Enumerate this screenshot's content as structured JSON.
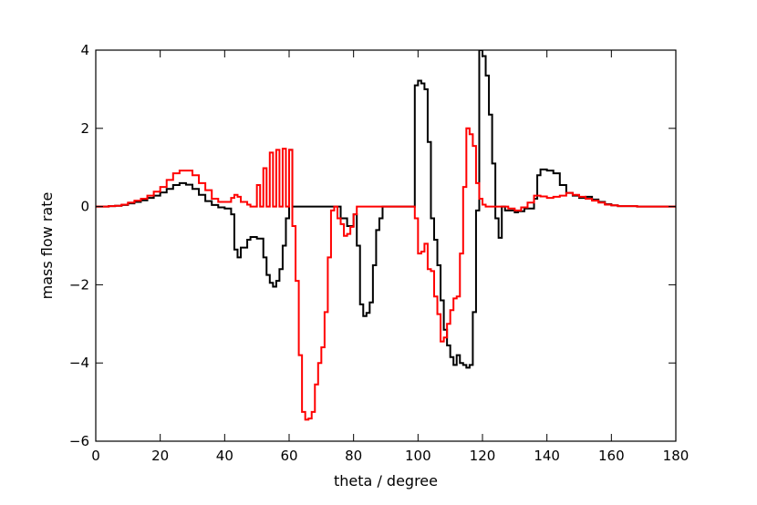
{
  "chart_data": {
    "type": "line",
    "step": true,
    "title": "",
    "xlabel": "theta / degree",
    "ylabel": "mass flow rate",
    "xlim": [
      0,
      180
    ],
    "ylim": [
      -6,
      4
    ],
    "xticks": [
      0,
      20,
      40,
      60,
      80,
      100,
      120,
      140,
      160,
      180
    ],
    "yticks": [
      4,
      2,
      0,
      -2,
      -4,
      -6
    ],
    "xtick_labels": [
      "0",
      "20",
      "40",
      "60",
      "80",
      "100",
      "120",
      "140",
      "160",
      "180"
    ],
    "ytick_labels": [
      "4",
      "2",
      "0",
      "−2",
      "−4",
      "−6"
    ],
    "grid": false,
    "legend": false,
    "series": [
      {
        "color": "#000000",
        "points": [
          [
            0,
            0
          ],
          [
            4,
            0.01
          ],
          [
            6,
            0.02
          ],
          [
            8,
            0.04
          ],
          [
            10,
            0.08
          ],
          [
            12,
            0.12
          ],
          [
            14,
            0.16
          ],
          [
            16,
            0.22
          ],
          [
            18,
            0.28
          ],
          [
            20,
            0.36
          ],
          [
            22,
            0.45
          ],
          [
            24,
            0.55
          ],
          [
            26,
            0.6
          ],
          [
            28,
            0.56
          ],
          [
            30,
            0.45
          ],
          [
            32,
            0.3
          ],
          [
            34,
            0.14
          ],
          [
            36,
            0.04
          ],
          [
            38,
            -0.02
          ],
          [
            40,
            -0.05
          ],
          [
            42,
            -0.2
          ],
          [
            43,
            -1.1
          ],
          [
            44,
            -1.3
          ],
          [
            45,
            -1.05
          ],
          [
            47,
            -0.85
          ],
          [
            48,
            -0.78
          ],
          [
            50,
            -0.82
          ],
          [
            52,
            -1.3
          ],
          [
            53,
            -1.75
          ],
          [
            54,
            -1.95
          ],
          [
            55,
            -2.05
          ],
          [
            56,
            -1.9
          ],
          [
            57,
            -1.6
          ],
          [
            58,
            -1.0
          ],
          [
            59,
            -0.3
          ],
          [
            60,
            1.45
          ],
          [
            61,
            0.0
          ],
          [
            62,
            0
          ],
          [
            63,
            0.0
          ],
          [
            74,
            0
          ],
          [
            76,
            -0.3
          ],
          [
            78,
            -0.5
          ],
          [
            80,
            -0.2
          ],
          [
            81,
            -1.0
          ],
          [
            82,
            -2.5
          ],
          [
            83,
            -2.8
          ],
          [
            84,
            -2.72
          ],
          [
            85,
            -2.45
          ],
          [
            86,
            -1.5
          ],
          [
            87,
            -0.6
          ],
          [
            88,
            -0.3
          ],
          [
            89,
            0
          ],
          [
            98,
            0
          ],
          [
            99,
            3.1
          ],
          [
            100,
            3.22
          ],
          [
            101,
            3.15
          ],
          [
            102,
            3.0
          ],
          [
            103,
            1.65
          ],
          [
            104,
            -0.3
          ],
          [
            105,
            -0.85
          ],
          [
            106,
            -1.5
          ],
          [
            107,
            -2.4
          ],
          [
            108,
            -3.15
          ],
          [
            109,
            -3.55
          ],
          [
            110,
            -3.85
          ],
          [
            111,
            -4.05
          ],
          [
            112,
            -3.8
          ],
          [
            113,
            -4.0
          ],
          [
            114,
            -4.05
          ],
          [
            115,
            -4.12
          ],
          [
            116,
            -4.05
          ],
          [
            117,
            -2.7
          ],
          [
            118,
            -0.1
          ],
          [
            119,
            4.0
          ],
          [
            120,
            3.85
          ],
          [
            121,
            3.35
          ],
          [
            122,
            2.35
          ],
          [
            123,
            1.1
          ],
          [
            124,
            -0.3
          ],
          [
            125,
            -0.8
          ],
          [
            126,
            0
          ],
          [
            127,
            -0.1
          ],
          [
            130,
            -0.15
          ],
          [
            131,
            -0.12
          ],
          [
            133,
            -0.05
          ],
          [
            136,
            0.2
          ],
          [
            137,
            0.8
          ],
          [
            138,
            0.95
          ],
          [
            140,
            0.92
          ],
          [
            142,
            0.85
          ],
          [
            144,
            0.55
          ],
          [
            146,
            0.35
          ],
          [
            148,
            0.28
          ],
          [
            150,
            0.22
          ],
          [
            152,
            0.25
          ],
          [
            154,
            0.18
          ],
          [
            156,
            0.12
          ],
          [
            158,
            0.06
          ],
          [
            160,
            0.03
          ],
          [
            162,
            0.01
          ],
          [
            168,
            0
          ],
          [
            180,
            0
          ]
        ]
      },
      {
        "color": "#ff0000",
        "points": [
          [
            0,
            0
          ],
          [
            4,
            0.01
          ],
          [
            6,
            0.02
          ],
          [
            8,
            0.05
          ],
          [
            10,
            0.1
          ],
          [
            12,
            0.15
          ],
          [
            14,
            0.2
          ],
          [
            16,
            0.28
          ],
          [
            18,
            0.38
          ],
          [
            20,
            0.5
          ],
          [
            22,
            0.68
          ],
          [
            24,
            0.85
          ],
          [
            26,
            0.92
          ],
          [
            28,
            0.92
          ],
          [
            30,
            0.8
          ],
          [
            32,
            0.6
          ],
          [
            34,
            0.42
          ],
          [
            36,
            0.2
          ],
          [
            38,
            0.12
          ],
          [
            40,
            0.12
          ],
          [
            42,
            0.22
          ],
          [
            43,
            0.3
          ],
          [
            44,
            0.25
          ],
          [
            45,
            0.12
          ],
          [
            47,
            0.05
          ],
          [
            48,
            0
          ],
          [
            50,
            0.55
          ],
          [
            51,
            0
          ],
          [
            52,
            0.98
          ],
          [
            53,
            0
          ],
          [
            54,
            1.38
          ],
          [
            55,
            0
          ],
          [
            56,
            1.45
          ],
          [
            57,
            0
          ],
          [
            58,
            1.48
          ],
          [
            59,
            0
          ],
          [
            60,
            1.45
          ],
          [
            61,
            -0.5
          ],
          [
            62,
            -1.9
          ],
          [
            63,
            -3.8
          ],
          [
            64,
            -5.25
          ],
          [
            65,
            -5.45
          ],
          [
            66,
            -5.42
          ],
          [
            67,
            -5.25
          ],
          [
            68,
            -4.55
          ],
          [
            69,
            -4.0
          ],
          [
            70,
            -3.6
          ],
          [
            71,
            -2.7
          ],
          [
            72,
            -1.3
          ],
          [
            73,
            -0.1
          ],
          [
            74,
            0
          ],
          [
            75,
            -0.3
          ],
          [
            76,
            -0.45
          ],
          [
            77,
            -0.75
          ],
          [
            78,
            -0.7
          ],
          [
            79,
            -0.52
          ],
          [
            80,
            -0.2
          ],
          [
            81,
            0
          ],
          [
            98,
            0
          ],
          [
            99,
            -0.3
          ],
          [
            100,
            -1.2
          ],
          [
            101,
            -1.15
          ],
          [
            102,
            -0.95
          ],
          [
            103,
            -1.6
          ],
          [
            104,
            -1.65
          ],
          [
            105,
            -2.3
          ],
          [
            106,
            -2.75
          ],
          [
            107,
            -3.45
          ],
          [
            108,
            -3.35
          ],
          [
            109,
            -3.0
          ],
          [
            110,
            -2.65
          ],
          [
            111,
            -2.35
          ],
          [
            112,
            -2.3
          ],
          [
            113,
            -1.2
          ],
          [
            114,
            0.5
          ],
          [
            115,
            2.0
          ],
          [
            116,
            1.85
          ],
          [
            117,
            1.55
          ],
          [
            118,
            0.6
          ],
          [
            119,
            0.2
          ],
          [
            120,
            0.05
          ],
          [
            121,
            0
          ],
          [
            126,
            0
          ],
          [
            128,
            -0.05
          ],
          [
            130,
            -0.1
          ],
          [
            132,
            -0.02
          ],
          [
            134,
            0.1
          ],
          [
            136,
            0.28
          ],
          [
            138,
            0.26
          ],
          [
            140,
            0.22
          ],
          [
            142,
            0.25
          ],
          [
            144,
            0.28
          ],
          [
            146,
            0.35
          ],
          [
            148,
            0.3
          ],
          [
            150,
            0.25
          ],
          [
            152,
            0.2
          ],
          [
            154,
            0.15
          ],
          [
            156,
            0.1
          ],
          [
            158,
            0.05
          ],
          [
            160,
            0.03
          ],
          [
            162,
            0.01
          ],
          [
            168,
            0
          ],
          [
            180,
            0
          ]
        ]
      }
    ]
  }
}
